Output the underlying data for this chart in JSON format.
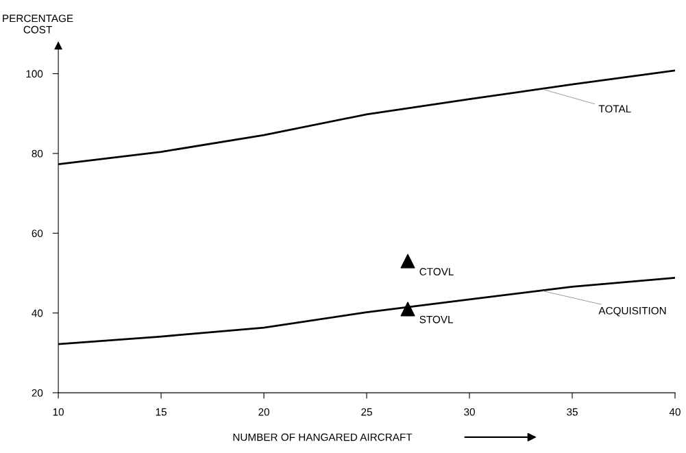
{
  "chart_data": {
    "type": "line",
    "xlabel": "NUMBER OF HANGARED AIRCRAFT",
    "ylabel": "PERCENTAGE\nCOST",
    "xlim": [
      10,
      40
    ],
    "xticks": [
      10,
      15,
      20,
      25,
      30,
      35,
      40
    ],
    "ylim": [
      20,
      107
    ],
    "yticks": [
      20,
      40,
      60,
      80,
      100
    ],
    "grid": false,
    "legend": false,
    "marker": "none",
    "line_style": "solid",
    "series": [
      {
        "color": "#000000",
        "x": [
          10,
          15,
          20,
          25,
          30,
          35,
          40
        ],
        "values": [
          77.3,
          80.4,
          84.6,
          89.8,
          93.6,
          97.3,
          100.8
        ]
      },
      {
        "color": "#000000",
        "x": [
          10,
          15,
          20,
          25,
          30,
          35,
          40
        ],
        "values": [
          32.2,
          34.1,
          36.3,
          40.2,
          43.4,
          46.6,
          48.8
        ]
      },
      {
        "type": "scatter",
        "name": "CTOVL",
        "marker": "triangle",
        "color": "#000000",
        "x": [
          27
        ],
        "values": [
          53
        ]
      },
      {
        "type": "scatter",
        "name": "STOVL",
        "marker": "triangle",
        "color": "#000000",
        "x": [
          27
        ],
        "values": [
          41
        ]
      }
    ],
    "annotations": [
      {
        "text": "TOTAL",
        "x": 33.5,
        "y": 96.2
      },
      {
        "text": "ACQUISITION",
        "x": 33.5,
        "y": 45.6
      }
    ]
  }
}
